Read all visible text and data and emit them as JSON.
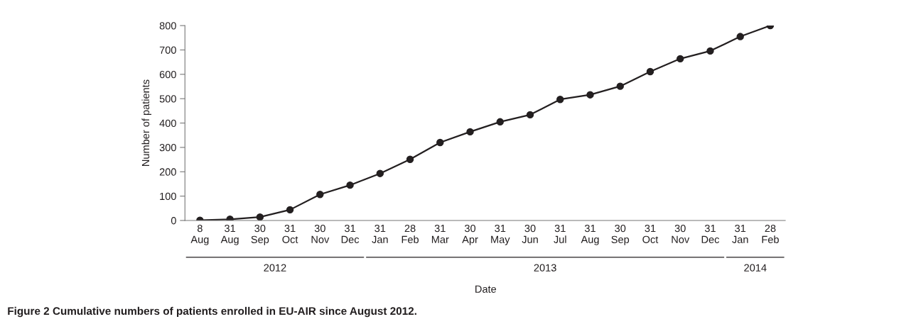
{
  "chart_data": {
    "type": "line",
    "xlabel": "Date",
    "ylabel": "Number of patients",
    "categories": [
      "8\nAug",
      "31\nAug",
      "30\nSep",
      "31\nOct",
      "30\nNov",
      "31\nDec",
      "31\nJan",
      "28\nFeb",
      "31\nMar",
      "30\nApr",
      "31\nMay",
      "30\nJun",
      "31\nJul",
      "31\nAug",
      "30\nSep",
      "31\nOct",
      "30\nNov",
      "31\nDec",
      "31\nJan",
      "28\nFeb"
    ],
    "series": [
      {
        "color": "#231f20",
        "values": [
          1,
          5,
          14,
          44,
          107,
          145,
          193,
          251,
          320,
          364,
          405,
          434,
          497,
          516,
          551,
          611,
          664,
          696,
          755,
          800
        ]
      }
    ],
    "ylim": [
      0,
      800
    ],
    "yticks": [
      0,
      100,
      200,
      300,
      400,
      500,
      600,
      700,
      800
    ],
    "marker": "circle",
    "line_style": "solid",
    "grid": false,
    "legend": false,
    "annotations": [
      "2012",
      "2013",
      "2014",
      "Figure 2 Cumulative numbers of patients enrolled in EU-AIR since August 2012."
    ]
  }
}
